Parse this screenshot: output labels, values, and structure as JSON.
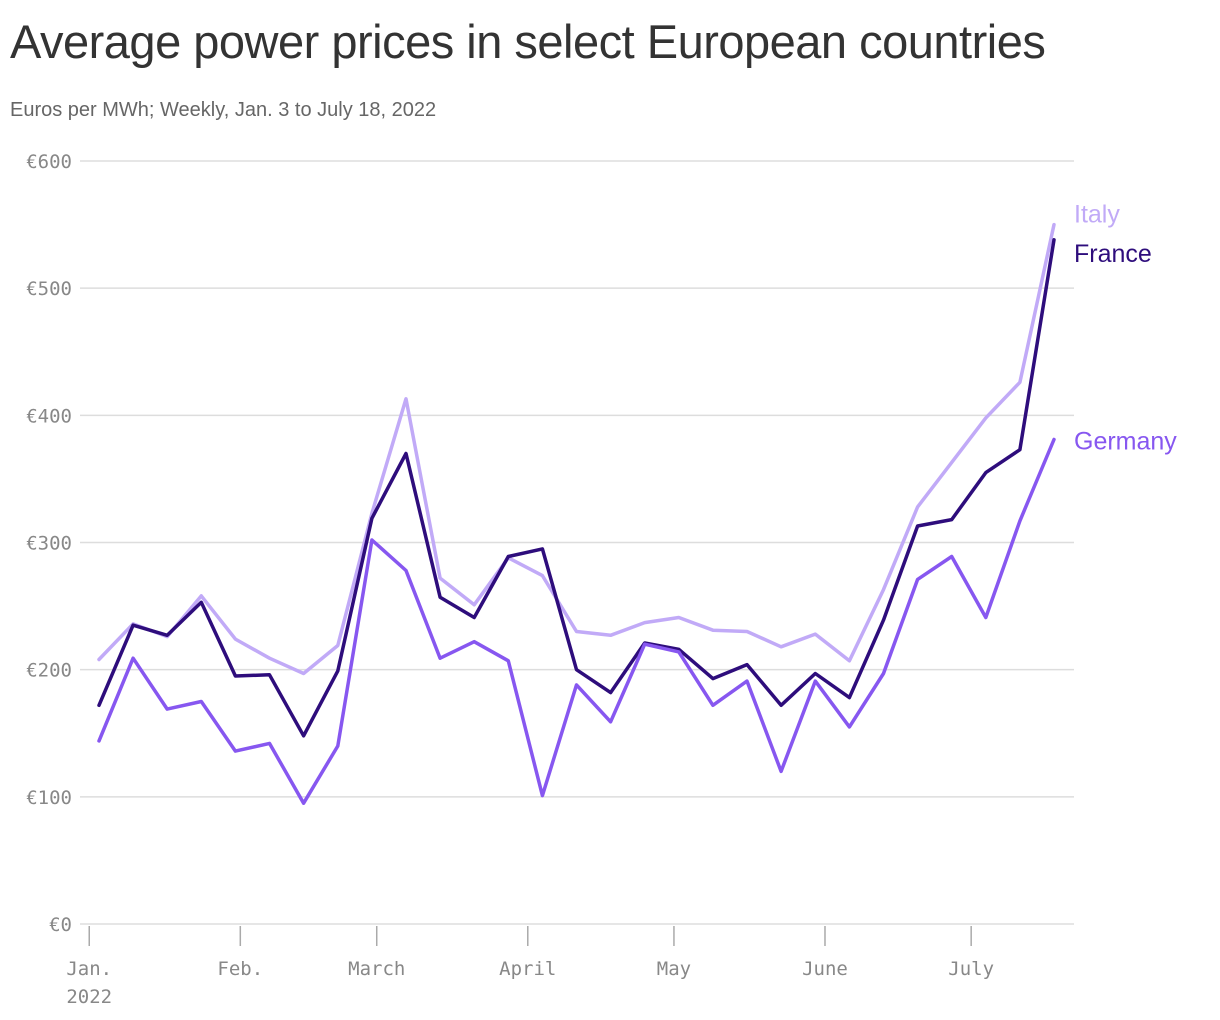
{
  "chart_data": {
    "type": "line",
    "title": "Average power prices in select European countries",
    "subtitle": "Euros per MWh; Weekly, Jan. 3 to July 18, 2022",
    "x_start": "2022-01-03",
    "x_end": "2022-07-18",
    "x_interval": "weekly",
    "ylim": [
      0,
      600
    ],
    "y_ticks": [
      {
        "value": 0,
        "label": "€0"
      },
      {
        "value": 100,
        "label": "€100"
      },
      {
        "value": 200,
        "label": "€200"
      },
      {
        "value": 300,
        "label": "€300"
      },
      {
        "value": 400,
        "label": "€400"
      },
      {
        "value": 500,
        "label": "€500"
      },
      {
        "value": 600,
        "label": "€600"
      }
    ],
    "x_ticks": [
      {
        "date": "2022-01-01",
        "label": "Jan.",
        "label2": "2022"
      },
      {
        "date": "2022-02-01",
        "label": "Feb."
      },
      {
        "date": "2022-03-01",
        "label": "March"
      },
      {
        "date": "2022-04-01",
        "label": "April"
      },
      {
        "date": "2022-05-01",
        "label": "May"
      },
      {
        "date": "2022-06-01",
        "label": "June"
      },
      {
        "date": "2022-07-01",
        "label": "July"
      }
    ],
    "grid": true,
    "series": [
      {
        "name": "Italy",
        "color": "#c1aaf7",
        "values": [
          208,
          236,
          226,
          258,
          224,
          209,
          197,
          219,
          323,
          413,
          272,
          251,
          288,
          274,
          230,
          227,
          237,
          241,
          231,
          230,
          218,
          228,
          207,
          263,
          328,
          363,
          398,
          426,
          550
        ]
      },
      {
        "name": "France",
        "color": "#2e0d7c",
        "values": [
          172,
          235,
          227,
          253,
          195,
          196,
          148,
          199,
          319,
          370,
          257,
          241,
          289,
          295,
          200,
          182,
          221,
          216,
          193,
          204,
          172,
          197,
          178,
          239,
          313,
          318,
          355,
          373,
          538
        ]
      },
      {
        "name": "Germany",
        "color": "#8757f0",
        "values": [
          144,
          209,
          169,
          175,
          136,
          142,
          95,
          140,
          302,
          278,
          209,
          222,
          207,
          101,
          188,
          159,
          220,
          214,
          172,
          191,
          120,
          191,
          155,
          197,
          271,
          289,
          241,
          317,
          381
        ]
      }
    ]
  }
}
